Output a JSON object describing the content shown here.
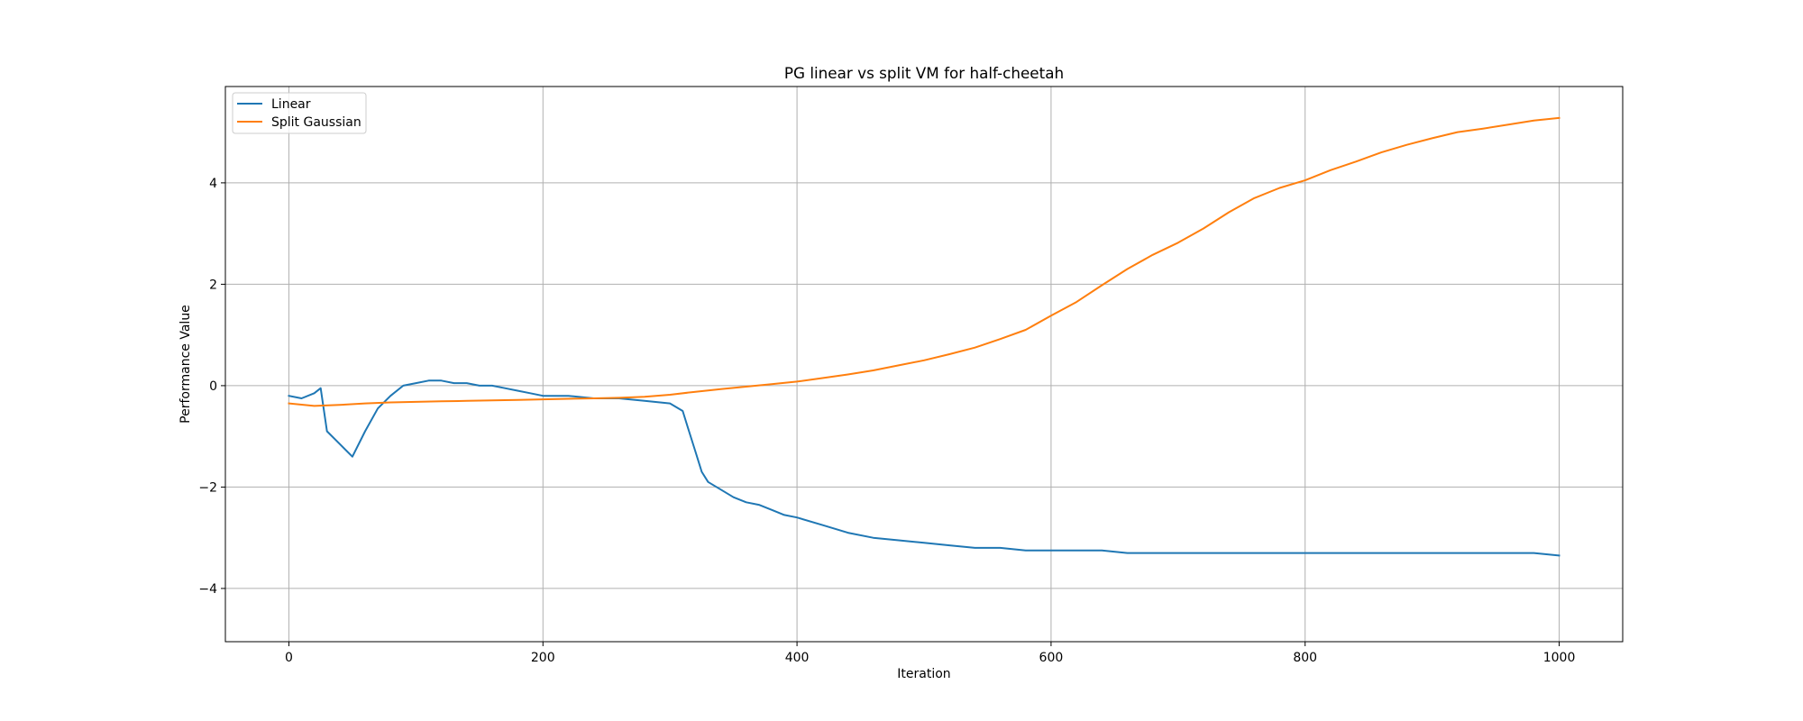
{
  "chart_data": {
    "type": "line",
    "title": "PG linear vs split VM for half-cheetah",
    "xlabel": "Iteration",
    "ylabel": "Performance Value",
    "xlim": [
      -50,
      1050
    ],
    "ylim": [
      -5.05,
      5.9
    ],
    "xticks": [
      0,
      200,
      400,
      600,
      800,
      1000
    ],
    "yticks": [
      -4,
      -2,
      0,
      2,
      4
    ],
    "grid": true,
    "legend_position": "top-left",
    "series": [
      {
        "name": "Linear",
        "color": "#1f77b4",
        "x": [
          0,
          10,
          20,
          25,
          30,
          40,
          50,
          60,
          70,
          80,
          90,
          100,
          110,
          120,
          130,
          140,
          150,
          160,
          170,
          180,
          190,
          200,
          220,
          240,
          260,
          280,
          300,
          310,
          315,
          320,
          325,
          330,
          340,
          350,
          360,
          370,
          380,
          390,
          400,
          420,
          440,
          460,
          480,
          500,
          520,
          540,
          560,
          580,
          600,
          620,
          640,
          660,
          680,
          700,
          720,
          740,
          760,
          780,
          800,
          820,
          840,
          860,
          880,
          900,
          920,
          940,
          960,
          980,
          1000
        ],
        "y": [
          -0.2,
          -0.25,
          -0.15,
          -0.05,
          -0.9,
          -1.15,
          -1.4,
          -0.9,
          -0.45,
          -0.2,
          0.0,
          0.05,
          0.1,
          0.1,
          0.05,
          0.05,
          0.0,
          0.0,
          -0.05,
          -0.1,
          -0.15,
          -0.2,
          -0.2,
          -0.25,
          -0.25,
          -0.3,
          -0.35,
          -0.5,
          -0.9,
          -1.3,
          -1.7,
          -1.9,
          -2.05,
          -2.2,
          -2.3,
          -2.35,
          -2.45,
          -2.55,
          -2.6,
          -2.75,
          -2.9,
          -3.0,
          -3.05,
          -3.1,
          -3.15,
          -3.2,
          -3.2,
          -3.25,
          -3.25,
          -3.25,
          -3.25,
          -3.3,
          -3.3,
          -3.3,
          -3.3,
          -3.3,
          -3.3,
          -3.3,
          -3.3,
          -3.3,
          -3.3,
          -3.3,
          -3.3,
          -3.3,
          -3.3,
          -3.3,
          -3.3,
          -3.3,
          -3.35
        ]
      },
      {
        "name": "Split Gaussian",
        "color": "#ff7f0e",
        "x": [
          0,
          20,
          40,
          60,
          80,
          100,
          120,
          140,
          160,
          180,
          200,
          220,
          240,
          260,
          280,
          300,
          320,
          340,
          360,
          380,
          400,
          420,
          440,
          460,
          480,
          500,
          520,
          540,
          560,
          580,
          600,
          620,
          640,
          660,
          680,
          700,
          720,
          740,
          760,
          780,
          800,
          820,
          840,
          860,
          880,
          900,
          920,
          940,
          960,
          980,
          1000
        ],
        "y": [
          -0.35,
          -0.4,
          -0.38,
          -0.35,
          -0.33,
          -0.32,
          -0.31,
          -0.3,
          -0.29,
          -0.28,
          -0.27,
          -0.26,
          -0.25,
          -0.24,
          -0.22,
          -0.18,
          -0.12,
          -0.07,
          -0.02,
          0.03,
          0.08,
          0.15,
          0.22,
          0.3,
          0.4,
          0.5,
          0.62,
          0.75,
          0.92,
          1.1,
          1.38,
          1.65,
          1.98,
          2.3,
          2.58,
          2.82,
          3.1,
          3.42,
          3.7,
          3.9,
          4.05,
          4.25,
          4.42,
          4.6,
          4.75,
          4.88,
          5.0,
          5.07,
          5.15,
          5.23,
          5.28
        ]
      }
    ]
  }
}
